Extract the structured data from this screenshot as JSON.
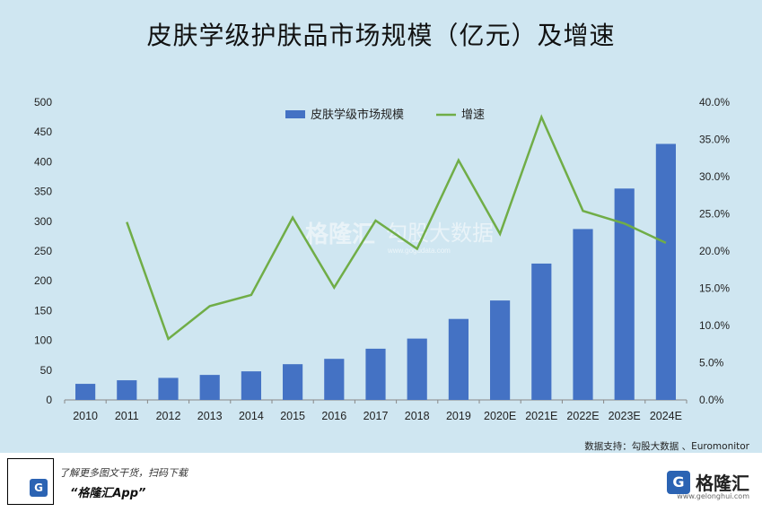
{
  "title": "皮肤学级护肤品市场规模（亿元）及增速",
  "chart_data": {
    "type": "bar+line",
    "categories": [
      "2010",
      "2011",
      "2012",
      "2013",
      "2014",
      "2015",
      "2016",
      "2017",
      "2018",
      "2019",
      "2020E",
      "2021E",
      "2022E",
      "2023E",
      "2024E"
    ],
    "series": [
      {
        "name": "皮肤学级市场规模",
        "type": "bar",
        "axis": "left",
        "values": [
          27,
          33,
          37,
          42,
          48,
          60,
          69,
          86,
          103,
          136,
          167,
          229,
          287,
          355,
          430
        ]
      },
      {
        "name": "增速",
        "type": "line",
        "axis": "right",
        "values": [
          null,
          0.239,
          0.082,
          0.126,
          0.141,
          0.245,
          0.151,
          0.241,
          0.203,
          0.322,
          0.223,
          0.38,
          0.254,
          0.237,
          0.211
        ]
      }
    ],
    "left_axis": {
      "min": 0,
      "max": 500,
      "step": 50
    },
    "right_axis": {
      "min": 0,
      "max": 0.4,
      "step": 0.05,
      "format": "percent1"
    },
    "colors": {
      "bar": "#4472c4",
      "line": "#70ad47"
    },
    "legend_position": "top-center",
    "grid": false
  },
  "source": "数据支持：勾股大数据 、Euromonitor",
  "watermark": {
    "brand": "格隆汇",
    "partner": "勾股大数据",
    "url": "www.gogudata.com"
  },
  "footer": {
    "line1": "了解更多图文干货，扫码下载",
    "line2": "“格隆汇App”",
    "brand": "格隆汇",
    "brand_sub": "www.gelonghui.com",
    "qr_mark": "G"
  }
}
